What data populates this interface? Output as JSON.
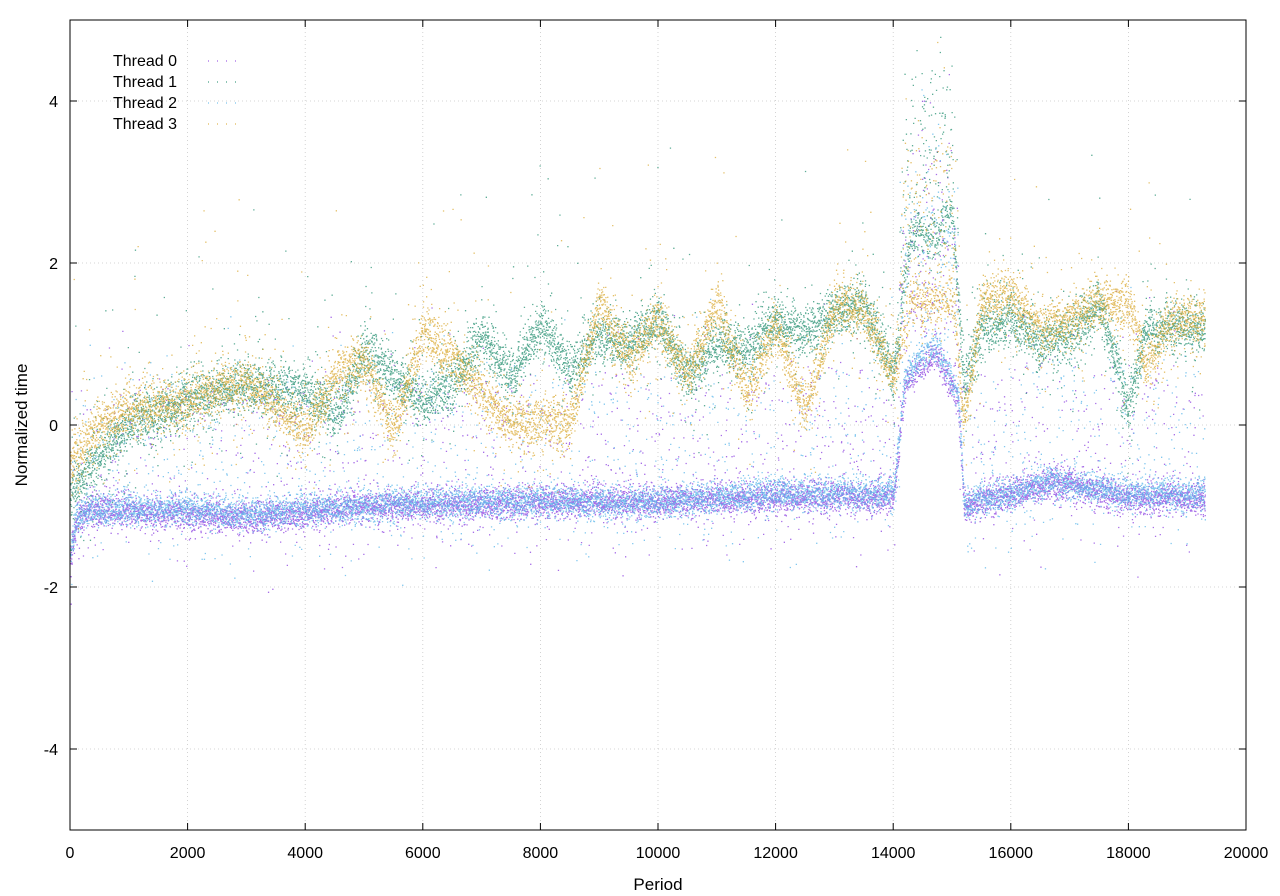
{
  "chart_data": {
    "type": "scatter",
    "title": "",
    "xlabel": "Period",
    "ylabel": "Normalized time",
    "xlim": [
      0,
      20000
    ],
    "ylim": [
      -5,
      5
    ],
    "xticks": [
      0,
      2000,
      4000,
      6000,
      8000,
      10000,
      12000,
      14000,
      16000,
      18000,
      20000
    ],
    "yticks": [
      -4,
      -2,
      0,
      2,
      4
    ],
    "grid": true,
    "legend_position": "top-left",
    "point_count_per_series": 19300,
    "series": [
      {
        "name": "Thread 0",
        "color": "#8b3fe0",
        "description": "dense band around -1 with scattered outliers",
        "mean_trend": [
          [
            0,
            -1.7
          ],
          [
            100,
            -1.2
          ],
          [
            300,
            -1.05
          ],
          [
            2000,
            -1.1
          ],
          [
            3000,
            -1.15
          ],
          [
            4000,
            -1.1
          ],
          [
            5000,
            -1.0
          ],
          [
            6000,
            -1.0
          ],
          [
            8000,
            -0.95
          ],
          [
            10000,
            -0.95
          ],
          [
            12000,
            -0.9
          ],
          [
            14000,
            -0.9
          ],
          [
            14200,
            0.5
          ],
          [
            14700,
            0.9
          ],
          [
            15100,
            0.3
          ],
          [
            15200,
            -1.0
          ],
          [
            16000,
            -0.85
          ],
          [
            16700,
            -0.7
          ],
          [
            18000,
            -0.9
          ],
          [
            19300,
            -0.9
          ]
        ],
        "noise_sd": 0.1
      },
      {
        "name": "Thread 1",
        "color": "#1a8a6a",
        "description": "noisy segments between 0 and 1.8, spike to ~4 near 14500",
        "mean_trend": [
          [
            0,
            -0.8
          ],
          [
            500,
            -0.4
          ],
          [
            1000,
            0.0
          ],
          [
            2000,
            0.3
          ],
          [
            3000,
            0.5
          ],
          [
            4000,
            0.4
          ],
          [
            4500,
            0.1
          ],
          [
            5000,
            0.9
          ],
          [
            5500,
            0.6
          ],
          [
            6000,
            0.3
          ],
          [
            6500,
            0.5
          ],
          [
            7000,
            1.1
          ],
          [
            7500,
            0.6
          ],
          [
            8000,
            1.2
          ],
          [
            8500,
            0.7
          ],
          [
            9000,
            1.1
          ],
          [
            9500,
            1.0
          ],
          [
            10000,
            1.3
          ],
          [
            10500,
            0.6
          ],
          [
            11000,
            1.0
          ],
          [
            11500,
            0.9
          ],
          [
            12000,
            1.3
          ],
          [
            12500,
            1.1
          ],
          [
            13000,
            1.4
          ],
          [
            13500,
            1.5
          ],
          [
            14000,
            0.6
          ],
          [
            14300,
            2.4
          ],
          [
            14700,
            2.3
          ],
          [
            15000,
            2.6
          ],
          [
            15200,
            0.5
          ],
          [
            15500,
            1.2
          ],
          [
            16000,
            1.3
          ],
          [
            16500,
            1.0
          ],
          [
            17000,
            1.1
          ],
          [
            17500,
            1.5
          ],
          [
            18000,
            0.2
          ],
          [
            18300,
            1.2
          ],
          [
            19300,
            1.2
          ]
        ],
        "noise_sd": 0.16
      },
      {
        "name": "Thread 2",
        "color": "#5ab6ea",
        "description": "dense band around -1, widely scattered faint outliers",
        "mean_trend": [
          [
            0,
            -1.6
          ],
          [
            100,
            -1.15
          ],
          [
            300,
            -1.05
          ],
          [
            2000,
            -1.05
          ],
          [
            3000,
            -1.1
          ],
          [
            4000,
            -1.05
          ],
          [
            5000,
            -1.0
          ],
          [
            6000,
            -0.95
          ],
          [
            8000,
            -0.95
          ],
          [
            10000,
            -0.95
          ],
          [
            12000,
            -0.85
          ],
          [
            14000,
            -0.85
          ],
          [
            14200,
            0.6
          ],
          [
            14700,
            1.0
          ],
          [
            15100,
            0.4
          ],
          [
            15200,
            -0.95
          ],
          [
            16000,
            -0.85
          ],
          [
            16700,
            -0.7
          ],
          [
            18000,
            -0.85
          ],
          [
            19300,
            -0.85
          ]
        ],
        "noise_sd": 0.1
      },
      {
        "name": "Thread 3",
        "color": "#d8a52a",
        "description": "noisy segments between -0.3 and 1.8, spike near 14500",
        "mean_trend": [
          [
            0,
            -0.5
          ],
          [
            500,
            0.0
          ],
          [
            1000,
            0.2
          ],
          [
            2000,
            0.3
          ],
          [
            3000,
            0.55
          ],
          [
            4000,
            -0.1
          ],
          [
            4500,
            0.6
          ],
          [
            5000,
            0.8
          ],
          [
            5500,
            -0.1
          ],
          [
            6000,
            1.2
          ],
          [
            6500,
            0.8
          ],
          [
            7000,
            0.4
          ],
          [
            7500,
            0.0
          ],
          [
            8000,
            0.05
          ],
          [
            8500,
            0.0
          ],
          [
            9000,
            1.5
          ],
          [
            9500,
            0.8
          ],
          [
            10000,
            1.3
          ],
          [
            10500,
            0.6
          ],
          [
            11000,
            1.5
          ],
          [
            11500,
            0.4
          ],
          [
            12000,
            1.2
          ],
          [
            12500,
            0.15
          ],
          [
            13000,
            1.5
          ],
          [
            13500,
            1.4
          ],
          [
            14000,
            0.6
          ],
          [
            14300,
            1.5
          ],
          [
            14700,
            1.5
          ],
          [
            15000,
            1.6
          ],
          [
            15200,
            0.0
          ],
          [
            15500,
            1.5
          ],
          [
            16000,
            1.6
          ],
          [
            16500,
            1.2
          ],
          [
            17000,
            1.3
          ],
          [
            17500,
            1.5
          ],
          [
            18000,
            1.5
          ],
          [
            18300,
            0.7
          ],
          [
            18700,
            1.3
          ],
          [
            19300,
            1.3
          ]
        ],
        "noise_sd": 0.16
      }
    ]
  }
}
